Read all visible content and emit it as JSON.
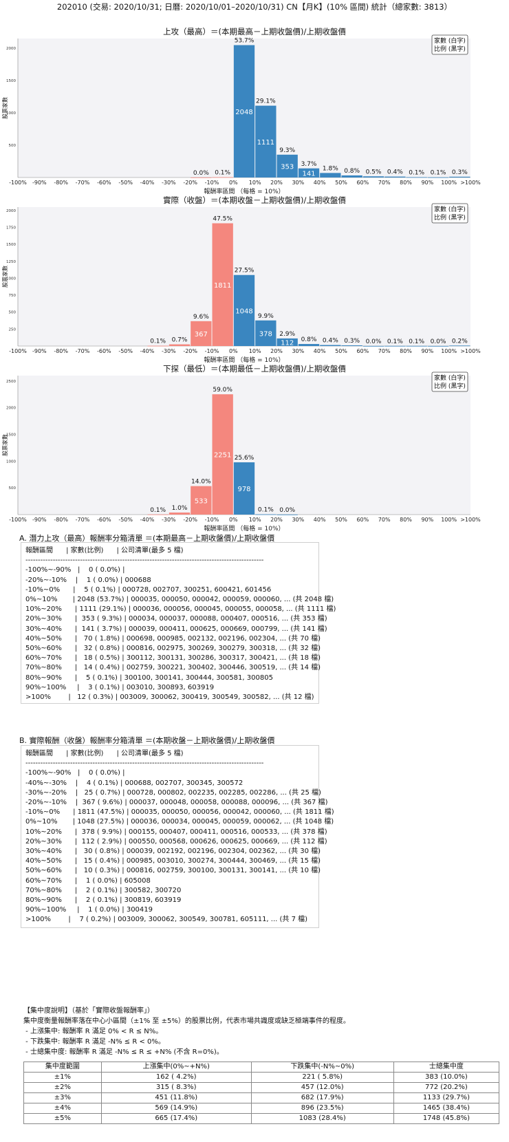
{
  "page_title": "202010 (交易: 2020/10/31; 日曆: 2020/10/01–2020/10/31) CN【月K】(10% 區間) 統計（總家數: 3813）",
  "x_tick_labels": [
    "-100%",
    "-90%",
    "-80%",
    "-70%",
    "-60%",
    "-50%",
    "-40%",
    "-30%",
    "-20%",
    "-10%",
    "0%",
    "10%",
    "20%",
    "30%",
    "40%",
    "50%",
    "60%",
    "70%",
    "80%",
    "90%",
    "100%",
    ">100%"
  ],
  "legend": {
    "line1": "家數 (白字)",
    "line2": "比例 (黑字)"
  },
  "colors": {
    "positive": "#3a86c0",
    "negative": "#f4877e"
  },
  "chart_data": [
    {
      "type": "bar",
      "title": "上攻（最高）＝(本期最高－上期收盤價)/上期收盤價",
      "xlabel": "報酬率區間 （每格 = 10%）",
      "ylabel": "股票家數",
      "ylim": [
        0,
        2150
      ],
      "yticks": [
        500,
        1000,
        1500,
        2000
      ],
      "bins": [
        {
          "range": "-20%~-10%",
          "start": -20,
          "count": 1,
          "pct": "0.0%"
        },
        {
          "range": "-10%~0%",
          "start": -10,
          "count": 5,
          "pct": "0.1%"
        },
        {
          "range": "0%~10%",
          "start": 0,
          "count": 2048,
          "pct": "53.7%"
        },
        {
          "range": "10%~20%",
          "start": 10,
          "count": 1111,
          "pct": "29.1%"
        },
        {
          "range": "20%~30%",
          "start": 20,
          "count": 353,
          "pct": "9.3%"
        },
        {
          "range": "30%~40%",
          "start": 30,
          "count": 141,
          "pct": "3.7%"
        },
        {
          "range": "40%~50%",
          "start": 40,
          "count": 70,
          "pct": "1.8%"
        },
        {
          "range": "50%~60%",
          "start": 50,
          "count": 32,
          "pct": "0.8%"
        },
        {
          "range": "60%~70%",
          "start": 60,
          "count": 18,
          "pct": "0.5%"
        },
        {
          "range": "70%~80%",
          "start": 70,
          "count": 14,
          "pct": "0.4%"
        },
        {
          "range": "80%~90%",
          "start": 80,
          "count": 5,
          "pct": "0.1%"
        },
        {
          "range": "90%~100%",
          "start": 90,
          "count": 3,
          "pct": "0.1%"
        },
        {
          "range": ">100%",
          "start": 100,
          "count": 12,
          "pct": "0.3%"
        }
      ]
    },
    {
      "type": "bar",
      "title": "實際（收盤）＝(本期收盤－上期收盤價)/上期收盤價",
      "xlabel": "報酬率區間 （每格 = 10%）",
      "ylabel": "股票家數",
      "ylim": [
        0,
        2050
      ],
      "yticks": [
        250,
        500,
        750,
        1000,
        1250,
        1500,
        1750,
        2000
      ],
      "bins": [
        {
          "range": "-40%~-30%",
          "start": -40,
          "count": 4,
          "pct": "0.1%"
        },
        {
          "range": "-30%~-20%",
          "start": -30,
          "count": 25,
          "pct": "0.7%"
        },
        {
          "range": "-20%~-10%",
          "start": -20,
          "count": 367,
          "pct": "9.6%"
        },
        {
          "range": "-10%~0%",
          "start": -10,
          "count": 1811,
          "pct": "47.5%"
        },
        {
          "range": "0%~10%",
          "start": 0,
          "count": 1048,
          "pct": "27.5%"
        },
        {
          "range": "10%~20%",
          "start": 10,
          "count": 378,
          "pct": "9.9%"
        },
        {
          "range": "20%~30%",
          "start": 20,
          "count": 112,
          "pct": "2.9%"
        },
        {
          "range": "30%~40%",
          "start": 30,
          "count": 30,
          "pct": "0.8%"
        },
        {
          "range": "40%~50%",
          "start": 40,
          "count": 15,
          "pct": "0.4%"
        },
        {
          "range": "50%~60%",
          "start": 50,
          "count": 10,
          "pct": "0.3%"
        },
        {
          "range": "60%~70%",
          "start": 60,
          "count": 1,
          "pct": "0.0%"
        },
        {
          "range": "70%~80%",
          "start": 70,
          "count": 2,
          "pct": "0.1%"
        },
        {
          "range": "80%~90%",
          "start": 80,
          "count": 2,
          "pct": "0.1%"
        },
        {
          "range": "90%~100%",
          "start": 90,
          "count": 1,
          "pct": "0.0%"
        },
        {
          "range": ">100%",
          "start": 100,
          "count": 7,
          "pct": "0.2%"
        }
      ]
    },
    {
      "type": "bar",
      "title": "下探（最低）＝(本期最低－上期收盤價)/上期收盤價",
      "xlabel": "報酬率區間 （每格 = 10%）",
      "ylabel": "股票家數",
      "ylim": [
        0,
        2600
      ],
      "yticks": [
        500,
        1000,
        1500,
        2000,
        2500
      ],
      "bins": [
        {
          "range": "-40%~-30%",
          "start": -40,
          "count": 3,
          "pct": "0.1%"
        },
        {
          "range": "-30%~-20%",
          "start": -30,
          "count": 38,
          "pct": "1.0%"
        },
        {
          "range": "-20%~-10%",
          "start": -20,
          "count": 533,
          "pct": "14.0%"
        },
        {
          "range": "-10%~0%",
          "start": -10,
          "count": 2251,
          "pct": "59.0%"
        },
        {
          "range": "0%~10%",
          "start": 0,
          "count": 978,
          "pct": "25.6%"
        },
        {
          "range": "10%~20%",
          "start": 10,
          "count": 5,
          "pct": "0.1%"
        },
        {
          "range": "20%~30%",
          "start": 20,
          "count": 1,
          "pct": "0.0%"
        }
      ]
    }
  ],
  "section_a": {
    "title": "A. 潛力上攻（最高）報酬率分箱清單 ＝(本期最高－上期收盤價)/上期收盤價",
    "lines": [
      "報酬區間      | 家數(比例)      | 公司清單(最多 5 檔)",
      "------------------------------------------------------------------------------------------------",
      "-100%~-90%   |    0 ( 0.0%) |",
      "-20%~-10%    |    1 ( 0.0%) | 000688",
      "-10%~0%      |    5 ( 0.1%) | 000728, 002707, 300251, 600421, 601456",
      "0%~10%       | 2048 (53.7%) | 000035, 000050, 000042, 000059, 000060, ... (共 2048 檔)",
      "10%~20%      | 1111 (29.1%) | 000036, 000056, 000045, 000055, 000058, ... (共 1111 檔)",
      "20%~30%      |  353 ( 9.3%) | 000034, 000037, 000088, 000407, 000516, ... (共 353 檔)",
      "30%~40%      |  141 ( 3.7%) | 000039, 000411, 000625, 000669, 000799, ... (共 141 檔)",
      "40%~50%      |   70 ( 1.8%) | 000698, 000985, 002132, 002196, 002304, ... (共 70 檔)",
      "50%~60%      |   32 ( 0.8%) | 000816, 002975, 300269, 300279, 300318, ... (共 32 檔)",
      "60%~70%      |   18 ( 0.5%) | 300112, 300131, 300286, 300317, 300421, ... (共 18 檔)",
      "70%~80%      |   14 ( 0.4%) | 002759, 300221, 300402, 300446, 300519, ... (共 14 檔)",
      "80%~90%      |    5 ( 0.1%) | 300100, 300141, 300444, 300581, 300805",
      "90%~100%     |    3 ( 0.1%) | 003010, 300893, 603919",
      ">100%        |   12 ( 0.3%) | 003009, 300062, 300419, 300549, 300582, ... (共 12 檔)"
    ]
  },
  "section_b": {
    "title": "B. 實際報酬（收盤）報酬率分箱清單 ＝(本期收盤－上期收盤價)/上期收盤價",
    "lines": [
      "報酬區間      | 家數(比例)      | 公司清單(最多 5 檔)",
      "------------------------------------------------------------------------------------------------",
      "-100%~-90%   |    0 ( 0.0%) |",
      "-40%~-30%    |    4 ( 0.1%) | 000688, 002707, 300345, 300572",
      "-30%~-20%    |   25 ( 0.7%) | 000728, 000802, 002235, 002285, 002286, ... (共 25 檔)",
      "-20%~-10%    |  367 ( 9.6%) | 000037, 000048, 000058, 000088, 000096, ... (共 367 檔)",
      "-10%~0%      | 1811 (47.5%) | 000035, 000050, 000056, 000042, 000060, ... (共 1811 檔)",
      "0%~10%       | 1048 (27.5%) | 000036, 000034, 000045, 000059, 000062, ... (共 1048 檔)",
      "10%~20%      |  378 ( 9.9%) | 000155, 000407, 000411, 000516, 000533, ... (共 378 檔)",
      "20%~30%      |  112 ( 2.9%) | 000550, 000568, 000626, 000625, 000669, ... (共 112 檔)",
      "30%~40%      |   30 ( 0.8%) | 000039, 002192, 002196, 002304, 002362, ... (共 30 檔)",
      "40%~50%      |   15 ( 0.4%) | 000985, 003010, 300274, 300444, 300469, ... (共 15 檔)",
      "50%~60%      |   10 ( 0.3%) | 000816, 002759, 300100, 300131, 300141, ... (共 10 檔)",
      "60%~70%      |    1 ( 0.0%) | 605008",
      "70%~80%      |    2 ( 0.1%) | 300582, 300720",
      "80%~90%      |    2 ( 0.1%) | 300819, 603919",
      "90%~100%     |    1 ( 0.0%) | 300419",
      ">100%        |    7 ( 0.2%) | 003009, 300062, 300549, 300781, 605111, ... (共 7 檔)"
    ]
  },
  "notes": [
    "【集中度說明】（基於「實際收盤報酬率」）",
    "集中度衡量報酬率落在中心小區間（±1% 至 ±5%）的股票比例，代表市場共識度或缺乏極端事件的程度。",
    " - 上漲集中: 報酬率 R 滿足 0% < R ≤ N%。",
    " - 下跌集中: 報酬率 R 滿足 -N% ≤ R < 0%。",
    " - 士總集中度: 報酬率 R 滿足 -N% ≤ R ≤ +N% (不含 R=0%)。"
  ],
  "concentration_table": {
    "headers": [
      "集中度範圍",
      "上漲集中(0%~+N%)",
      "下跌集中(-N%~0%)",
      "士總集中度"
    ],
    "rows": [
      [
        "±1%",
        "162 ( 4.2%)",
        "221 ( 5.8%)",
        "383 (10.0%)"
      ],
      [
        "±2%",
        "315 ( 8.3%)",
        "457 (12.0%)",
        "772 (20.2%)"
      ],
      [
        "±3%",
        "451 (11.8%)",
        "682 (17.9%)",
        "1133 (29.7%)"
      ],
      [
        "±4%",
        "569 (14.9%)",
        "896 (23.5%)",
        "1465 (38.4%)"
      ],
      [
        "±5%",
        "665 (17.4%)",
        "1083 (28.4%)",
        "1748 (45.8%)"
      ]
    ]
  }
}
